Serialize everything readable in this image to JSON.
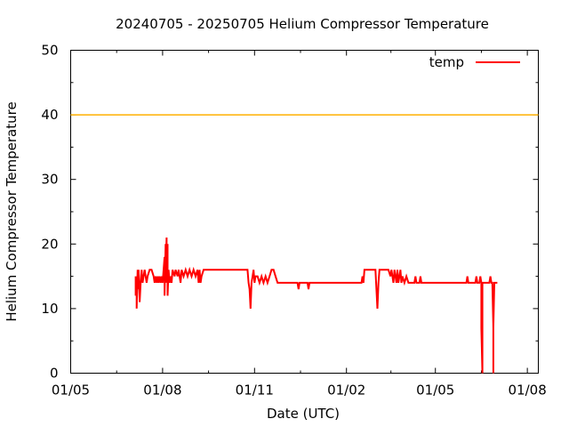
{
  "chart_data": {
    "type": "line",
    "title": "20240705 - 20250705 Helium Compressor Temperature",
    "xlabel": "Date (UTC)",
    "ylabel": "Helium Compressor Temperature",
    "xlim": [
      "2024-05-01",
      "2025-08-12"
    ],
    "ylim": [
      0,
      50
    ],
    "yticks": [
      0,
      10,
      20,
      30,
      40,
      50
    ],
    "xticks": [
      {
        "date": "2024-05-01",
        "label": "01/05"
      },
      {
        "date": "2024-08-01",
        "label": "01/08"
      },
      {
        "date": "2024-11-01",
        "label": "01/11"
      },
      {
        "date": "2025-02-01",
        "label": "01/02"
      },
      {
        "date": "2025-05-01",
        "label": "01/05"
      },
      {
        "date": "2025-08-01",
        "label": "01/08"
      }
    ],
    "reference_line": {
      "y": 40,
      "color": "#ffb000"
    },
    "legend": {
      "position": "top-right"
    },
    "series": [
      {
        "name": "temp",
        "color": "#ff0000",
        "points": [
          [
            "2024-07-05",
            15
          ],
          [
            "2024-07-05",
            12
          ],
          [
            "2024-07-06",
            14
          ],
          [
            "2024-07-06",
            10
          ],
          [
            "2024-07-07",
            16
          ],
          [
            "2024-07-08",
            13
          ],
          [
            "2024-07-08",
            16
          ],
          [
            "2024-07-09",
            11
          ],
          [
            "2024-07-10",
            14
          ],
          [
            "2024-07-11",
            16
          ],
          [
            "2024-07-12",
            14
          ],
          [
            "2024-07-13",
            15
          ],
          [
            "2024-07-14",
            16
          ],
          [
            "2024-07-16",
            14
          ],
          [
            "2024-07-17",
            15
          ],
          [
            "2024-07-19",
            16
          ],
          [
            "2024-07-21",
            16
          ],
          [
            "2024-07-23",
            15
          ],
          [
            "2024-07-24",
            14
          ],
          [
            "2024-07-25",
            15
          ],
          [
            "2024-07-26",
            14
          ],
          [
            "2024-07-27",
            15
          ],
          [
            "2024-07-28",
            14
          ],
          [
            "2024-07-29",
            15
          ],
          [
            "2024-07-30",
            14
          ],
          [
            "2024-07-31",
            15
          ],
          [
            "2024-08-01",
            14
          ],
          [
            "2024-08-02",
            16
          ],
          [
            "2024-08-03",
            18
          ],
          [
            "2024-08-03",
            12
          ],
          [
            "2024-08-04",
            20
          ],
          [
            "2024-08-04",
            16
          ],
          [
            "2024-08-05",
            21
          ],
          [
            "2024-08-05",
            14
          ],
          [
            "2024-08-06",
            20
          ],
          [
            "2024-08-06",
            12
          ],
          [
            "2024-08-07",
            16
          ],
          [
            "2024-08-08",
            14
          ],
          [
            "2024-08-09",
            15
          ],
          [
            "2024-08-10",
            14
          ],
          [
            "2024-08-11",
            16
          ],
          [
            "2024-08-13",
            15
          ],
          [
            "2024-08-14",
            16
          ],
          [
            "2024-08-16",
            15
          ],
          [
            "2024-08-17",
            16
          ],
          [
            "2024-08-19",
            14
          ],
          [
            "2024-08-20",
            16
          ],
          [
            "2024-08-22",
            15
          ],
          [
            "2024-08-24",
            16
          ],
          [
            "2024-08-26",
            15
          ],
          [
            "2024-08-28",
            16
          ],
          [
            "2024-08-30",
            15
          ],
          [
            "2024-09-01",
            16
          ],
          [
            "2024-09-03",
            15
          ],
          [
            "2024-09-05",
            16
          ],
          [
            "2024-09-06",
            14
          ],
          [
            "2024-09-07",
            16
          ],
          [
            "2024-09-08",
            14
          ],
          [
            "2024-09-09",
            15
          ],
          [
            "2024-09-11",
            16
          ],
          [
            "2024-09-13",
            16
          ],
          [
            "2024-09-20",
            16
          ],
          [
            "2024-10-01",
            16
          ],
          [
            "2024-10-10",
            16
          ],
          [
            "2024-10-20",
            16
          ],
          [
            "2024-10-25",
            16
          ],
          [
            "2024-10-26",
            14
          ],
          [
            "2024-10-27",
            13
          ],
          [
            "2024-10-28",
            10
          ],
          [
            "2024-10-29",
            14
          ],
          [
            "2024-10-30",
            15
          ],
          [
            "2024-10-31",
            16
          ],
          [
            "2024-11-01",
            14
          ],
          [
            "2024-11-02",
            15
          ],
          [
            "2024-11-04",
            15
          ],
          [
            "2024-11-06",
            14
          ],
          [
            "2024-11-08",
            15
          ],
          [
            "2024-11-10",
            14
          ],
          [
            "2024-11-12",
            15
          ],
          [
            "2024-11-14",
            14
          ],
          [
            "2024-11-16",
            15
          ],
          [
            "2024-11-18",
            16
          ],
          [
            "2024-11-20",
            16
          ],
          [
            "2024-11-22",
            15
          ],
          [
            "2024-11-24",
            14
          ],
          [
            "2024-12-01",
            14
          ],
          [
            "2024-12-10",
            14
          ],
          [
            "2024-12-14",
            14
          ],
          [
            "2024-12-15",
            13
          ],
          [
            "2024-12-16",
            14
          ],
          [
            "2024-12-20",
            14
          ],
          [
            "2024-12-24",
            14
          ],
          [
            "2024-12-25",
            13
          ],
          [
            "2024-12-26",
            14
          ],
          [
            "2025-01-05",
            14
          ],
          [
            "2025-01-15",
            14
          ],
          [
            "2025-01-25",
            14
          ],
          [
            "2025-02-05",
            14
          ],
          [
            "2025-02-16",
            14
          ],
          [
            "2025-02-17",
            15
          ],
          [
            "2025-02-18",
            14
          ],
          [
            "2025-02-19",
            16
          ],
          [
            "2025-02-25",
            16
          ],
          [
            "2025-03-02",
            16
          ],
          [
            "2025-03-03",
            13
          ],
          [
            "2025-03-04",
            10
          ],
          [
            "2025-03-05",
            14
          ],
          [
            "2025-03-06",
            16
          ],
          [
            "2025-03-10",
            16
          ],
          [
            "2025-03-15",
            16
          ],
          [
            "2025-03-17",
            15
          ],
          [
            "2025-03-18",
            16
          ],
          [
            "2025-03-20",
            14
          ],
          [
            "2025-03-21",
            16
          ],
          [
            "2025-03-22",
            15
          ],
          [
            "2025-03-23",
            14
          ],
          [
            "2025-03-24",
            16
          ],
          [
            "2025-03-25",
            14
          ],
          [
            "2025-03-26",
            15
          ],
          [
            "2025-03-27",
            16
          ],
          [
            "2025-03-28",
            14
          ],
          [
            "2025-03-29",
            15
          ],
          [
            "2025-03-31",
            14
          ],
          [
            "2025-04-02",
            15
          ],
          [
            "2025-04-04",
            14
          ],
          [
            "2025-04-10",
            14
          ],
          [
            "2025-04-11",
            15
          ],
          [
            "2025-04-12",
            14
          ],
          [
            "2025-04-15",
            14
          ],
          [
            "2025-04-16",
            15
          ],
          [
            "2025-04-17",
            14
          ],
          [
            "2025-04-25",
            14
          ],
          [
            "2025-05-01",
            14
          ],
          [
            "2025-05-10",
            14
          ],
          [
            "2025-05-20",
            14
          ],
          [
            "2025-06-01",
            14
          ],
          [
            "2025-06-02",
            15
          ],
          [
            "2025-06-03",
            14
          ],
          [
            "2025-06-10",
            14
          ],
          [
            "2025-06-11",
            15
          ],
          [
            "2025-06-12",
            14
          ],
          [
            "2025-06-14",
            14
          ],
          [
            "2025-06-15",
            15
          ],
          [
            "2025-06-16",
            14
          ],
          [
            "2025-06-16",
            10
          ],
          [
            "2025-06-16",
            7
          ],
          [
            "2025-06-17",
            0
          ],
          [
            "2025-06-17",
            7
          ],
          [
            "2025-06-17",
            14
          ],
          [
            "2025-06-20",
            14
          ],
          [
            "2025-06-24",
            14
          ],
          [
            "2025-06-25",
            15
          ],
          [
            "2025-06-26",
            14
          ],
          [
            "2025-06-27",
            14
          ],
          [
            "2025-06-28",
            7
          ],
          [
            "2025-06-28",
            0
          ],
          [
            "2025-06-28",
            7
          ],
          [
            "2025-06-29",
            14
          ],
          [
            "2025-07-02",
            14
          ]
        ]
      }
    ]
  }
}
